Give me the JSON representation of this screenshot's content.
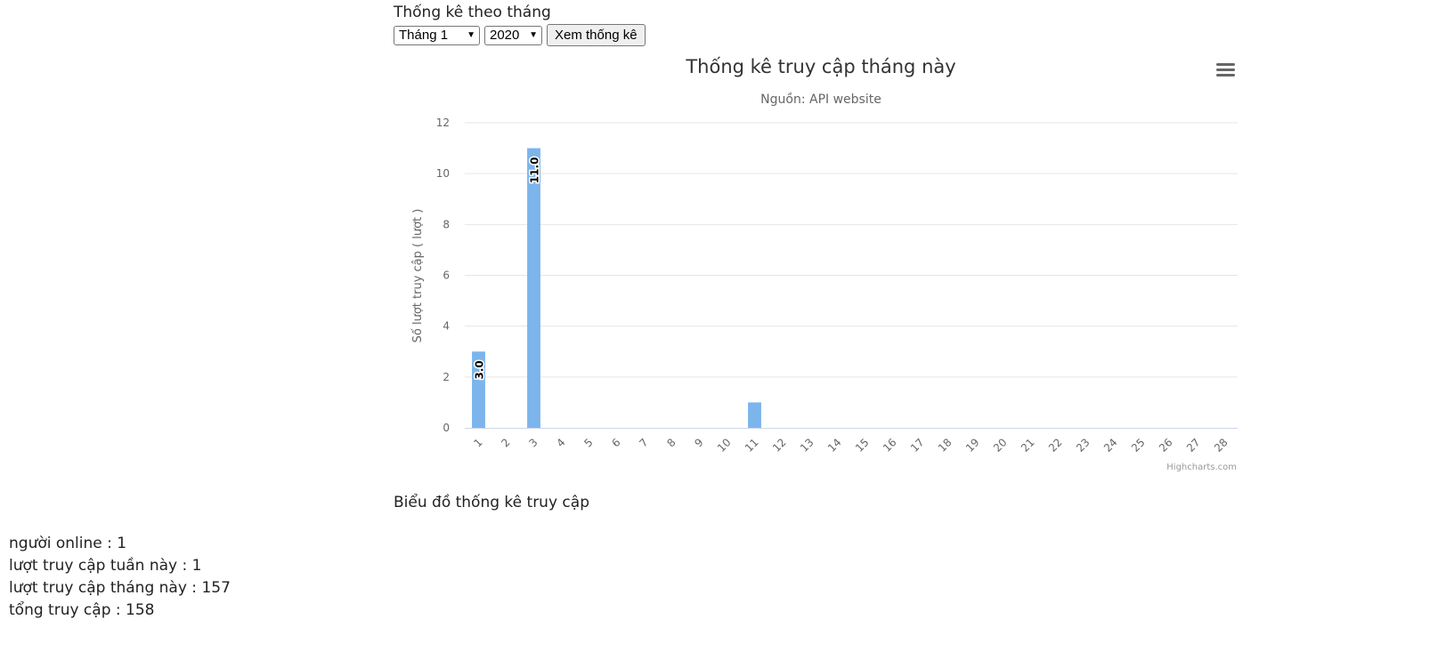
{
  "controls": {
    "heading": "Thống kê theo tháng",
    "month_select": "Tháng 1",
    "year_select": "2020",
    "submit_label": "Xem thống kê"
  },
  "chart_data": {
    "type": "bar",
    "title": "Thống kê truy cập tháng này",
    "subtitle": "Nguồn: API website",
    "xlabel": "",
    "ylabel": "Số lượt truy cập ( lượt )",
    "categories": [
      "1",
      "2",
      "3",
      "4",
      "5",
      "6",
      "7",
      "8",
      "9",
      "10",
      "11",
      "12",
      "13",
      "14",
      "15",
      "16",
      "17",
      "18",
      "19",
      "20",
      "21",
      "22",
      "23",
      "24",
      "25",
      "26",
      "27",
      "28"
    ],
    "values": [
      3,
      0,
      11,
      0,
      0,
      0,
      0,
      0,
      0,
      0,
      1,
      0,
      0,
      0,
      0,
      0,
      0,
      0,
      0,
      0,
      0,
      0,
      0,
      0,
      0,
      0,
      0,
      0
    ],
    "data_labels": {
      "0": "3.0",
      "2": "11.0"
    },
    "ylim": [
      0,
      12
    ],
    "yticks": [
      0,
      2,
      4,
      6,
      8,
      10,
      12
    ],
    "grid": true,
    "bar_color": "#7cb5ec",
    "credits": "Highcharts.com",
    "menu_icon": "hamburger-menu-icon"
  },
  "caption": "Biểu đồ thống kê truy cập",
  "stats": [
    {
      "label": "người online : ",
      "value": "1"
    },
    {
      "label": "lượt truy cập tuần này : ",
      "value": "1"
    },
    {
      "label": "lượt truy cập tháng này : ",
      "value": "157"
    },
    {
      "label": "tổng truy cập : ",
      "value": "158"
    }
  ]
}
